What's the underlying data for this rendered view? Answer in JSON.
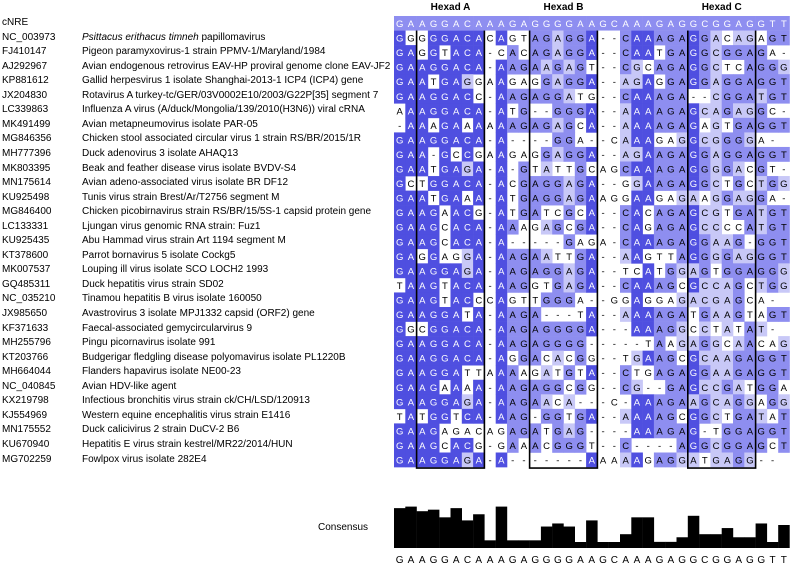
{
  "reference_label": "cNRE",
  "hexads": [
    "Hexad A",
    "Hexad B",
    "Hexad C"
  ],
  "consensus_label": "Consensus",
  "consensus_sequence": "GAAGGACAAAGAGGGGAAGCAAAGAGGCGGAGGTT",
  "colors": {
    "dark": "#4f4fe0",
    "mid": "#8e8ef0",
    "light": "#c8c8f7",
    "bar": "#000000"
  },
  "sequences": [
    {
      "accession": "NC_003973",
      "italic": "Psittacus erithacus timneh",
      "name": " papillomavirus",
      "seq": "GGGGGACACAGTAGAGGA--CAAAGAGGACAGAGT"
    },
    {
      "accession": "FJ410147",
      "italic": "",
      "name": "Pigeon paramyxovirus-1 strain PPMV-1/Maryland/1984",
      "seq": "GAGGTACA-CACAGAGGA--CAATGAGGCGGAGA-"
    },
    {
      "accession": "AJ292967",
      "italic": "",
      "name": "Avian endogenous retrovirus EAV-HP proviral genome clone EAV-JF2",
      "seq": "GAAGGACA-AAGAAGAGT--CGCAGAGGCTCAGGG"
    },
    {
      "accession": "KP881612",
      "italic": "",
      "name": "Gallid herpesvirus 1 isolate Shanghai-2013-1 ICP4 (ICP4) gene",
      "seq": "GAATGAGGAAGAGGAGGA--AGAGGAGGAGGAGGT"
    },
    {
      "accession": "JX204830",
      "italic": "",
      "name": "Rotavirus A turkey-tc/GER/03V0002E10/2003/G22P[35] segment 7",
      "seq": "GAAGGACC-AAGAGGATG--CAAAGA--CGGATGT"
    },
    {
      "accession": "LC339863",
      "italic": "",
      "name": "Influenza A virus (A/duck/Mongolia/139/2010(H3N6)) viral cRNA",
      "seq": "AAAGGACA-ATG--GGGA--AAAAGAGCAGAGGC-"
    },
    {
      "accession": "MK491499",
      "italic": "",
      "name": "Avian metapneumovirus isolate PAR-05",
      "seq": "-AAAGAAAAAAGAGAGCA--AAAAGAGAGTGAGGT"
    },
    {
      "accession": "MG846356",
      "italic": "",
      "name": "Chicken stool associated circular virus 1 strain RS/BR/2015/1R",
      "seq": "GAAGGACA-A----GGA--CAAAGAGGCGGGGA-"
    },
    {
      "accession": "MH777396",
      "italic": "",
      "name": "Duck adenovirus 3 isolate AHAQ13",
      "seq": "GAA-GCCGAAGAGGAGGA--AGAAGAGGAGGAGGT"
    },
    {
      "accession": "MK803395",
      "italic": "",
      "name": "Beak and feather disease virus isolate BVDV-S4",
      "seq": "GAATGAGA-A-GTATTGCAGCAAAGAGGGGACGT-"
    },
    {
      "accession": "MN175614",
      "italic": "",
      "name": "Avian adeno-associated virus isolate BR DF12",
      "seq": "GCTGGACA-ACGAGGAGA--GGAAGAGGCTGCTGG-"
    },
    {
      "accession": "KU925498",
      "italic": "",
      "name": "Tunis virus strain Brest/Ar/T2756 segment M",
      "seq": "GAATGAAA-ATGAGGAGAAGGAAGAGAAGGAGGA-"
    },
    {
      "accession": "MG846400",
      "italic": "",
      "name": "Chicken picobirnavirus strain RS/BR/15/5S-1 capsid protein gene",
      "seq": "GAAGAACG-ATGATCGCA--CACAGAGCGTGATGT"
    },
    {
      "accession": "LC133331",
      "italic": "",
      "name": "Ljungan virus genomic RNA strain: Fuz1",
      "seq": "GAAGCACA-AAAGAGCGA--CAGAGAGCCCCATGT"
    },
    {
      "accession": "KU925435",
      "italic": "",
      "name": "Abu Hammad virus strain Art 1194 segment M",
      "seq": "GAAGCACA-A-----GAGA-CAAAGAGGAAG-GGT"
    },
    {
      "accession": "KT378600",
      "italic": "",
      "name": "Parrot bornavirus 5 isolate Cockg5",
      "seq": "GAGGAGGA-AAGAATTGA--AAGTTAGGGGAGGGT"
    },
    {
      "accession": "MK007537",
      "italic": "",
      "name": "Louping ill virus isolate SCO LOCH2 1993",
      "seq": "GAAGGAGA-AAGAGGAGA--TCATGGAGTGGAGGG-"
    },
    {
      "accession": "GQ485311",
      "italic": "",
      "name": "Duck hepatitis virus strain SD02",
      "seq": "TAAGTACA-AAGGTGAGA--CAAAGCGCCAGCTGGT"
    },
    {
      "accession": "NC_035210",
      "italic": "",
      "name": "Tinamou hepatitis B virus isolate 160050",
      "seq": "GAAGTACCCAGTTGGGA--GGAGGAGACGAGCA-"
    },
    {
      "accession": "JX985650",
      "italic": "",
      "name": "Avastrovirus 3 isolate MPJ1332 capsid (ORF2) gene",
      "seq": "GAAGGATA-AAGA---TA--AAAAGATGAAGTAGT"
    },
    {
      "accession": "KF371633",
      "italic": "",
      "name": "Faecal-associated gemycircularvirus 9",
      "seq": "GGCGGACA-AAGAGGGGA---AAAGGCCTATAT-"
    },
    {
      "accession": "MH255796",
      "italic": "",
      "name": "Pingu picornavirus isolate 991",
      "seq": "GAAGGACA-AAGAGGGG-----TAAGAGGCAACAGT"
    },
    {
      "accession": "KT203766",
      "italic": "",
      "name": "Budgerigar fledgling disease polyomavirus isolate PL1220B",
      "seq": "GAAGGACA-AGGACACGG--TGAAGCGCAAGAGGT"
    },
    {
      "accession": "MH664044",
      "italic": "",
      "name": "Flanders hapavirus isolate NE00-23",
      "seq": "GAAGGATTAAAAGATGTA--CTGAGAGGAAGAGGT"
    },
    {
      "accession": "NC_040845",
      "italic": "",
      "name": "Avian HDV-like agent",
      "seq": "GAAGAAAA-AAGAGGCGG--CG--GAGCCGATGGA-"
    },
    {
      "accession": "KX219798",
      "italic": "",
      "name": "Infectious bronchitis virus strain ck/CH/LSD/120913",
      "seq": "GAAGGAGA-AAGAACA---C-AAAGAAGCAGGAGGA-"
    },
    {
      "accession": "KJ554969",
      "italic": "",
      "name": "Western equine encephalitis virus strain E1416",
      "seq": "TATGGTCA-AAG-GGTGA--AAAAGCGGCTGATAT-"
    },
    {
      "accession": "MN175552",
      "italic": "",
      "name": "Duck calicivirus 2 strain DuCV-2 B6",
      "seq": "GAAGAGACAGAGATGAG----AAAGAG-TGGAGGT"
    },
    {
      "accession": "KU670940",
      "italic": "",
      "name": "Hepatitis E virus strain kestrel/MR22/2014/HUN",
      "seq": "GAAGCACG-GAAACGGGT--C----AGGCGGAGCT"
    },
    {
      "accession": "MG702259",
      "italic": "",
      "name": "Fowlpox virus isolate 282E4",
      "seq": "GAAGGAGA-A-------AAAAAGAGGATGAGG--"
    }
  ]
}
